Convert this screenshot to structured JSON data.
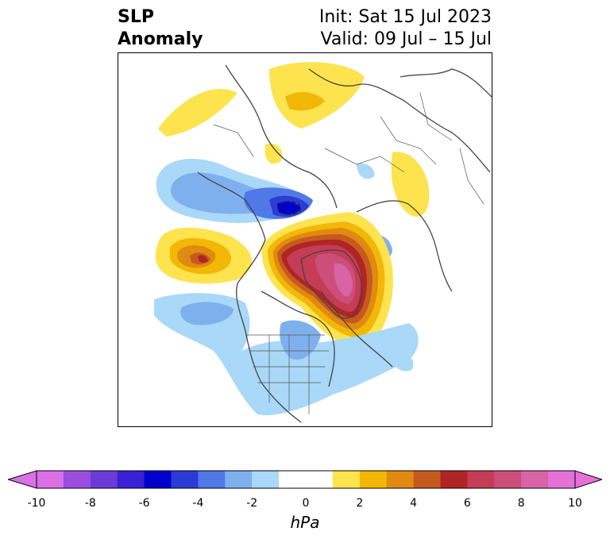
{
  "title": {
    "left_line1": "SLP",
    "left_line2": "Anomaly",
    "right_line1": "Init: Sat 15 Jul 2023",
    "right_line2": "Valid: 09 Jul – 15 Jul"
  },
  "colorbar": {
    "unit": "hPa",
    "ticks": [
      "-10",
      "-8",
      "-6",
      "-4",
      "-2",
      "0",
      "2",
      "4",
      "6",
      "8",
      "10"
    ],
    "tick_values": [
      -10,
      -8,
      -6,
      -4,
      -2,
      0,
      2,
      4,
      6,
      8,
      10
    ],
    "colors": [
      "#d970e6",
      "#9a4ee0",
      "#6a3bd8",
      "#3a1fd5",
      "#0000cc",
      "#2a3bd8",
      "#5078e6",
      "#7fb0ee",
      "#a9d8f8",
      "#ffffff",
      "#ffffff",
      "#fde34e",
      "#f2b707",
      "#e08a12",
      "#c55a1e",
      "#b02424",
      "#c43c55",
      "#cc4f7a",
      "#d864a6",
      "#e470d8"
    ],
    "extend_low_color": "#d970e6",
    "extend_high_color": "#e470d8"
  },
  "map": {
    "projection": "polar stereographic (north)",
    "field": "sea level pressure anomaly"
  }
}
